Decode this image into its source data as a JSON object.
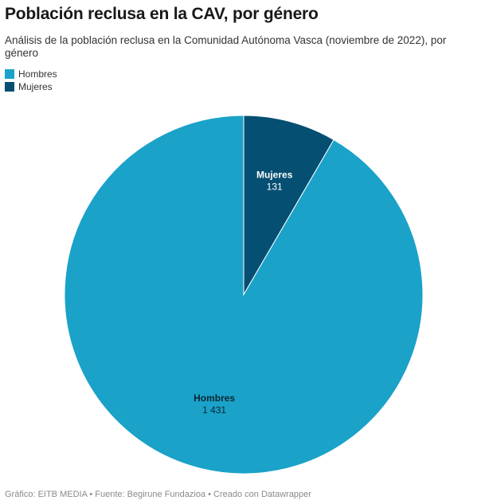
{
  "header": {
    "title": "Población reclusa en la CAV, por género",
    "subtitle": "Análisis de la población reclusa en la Comunidad Autónoma Vasca (noviembre de 2022), por género"
  },
  "legend": {
    "items": [
      {
        "label": "Hombres",
        "color": "#1aa2c9"
      },
      {
        "label": "Mujeres",
        "color": "#054f73"
      }
    ]
  },
  "chart_data": {
    "type": "pie",
    "title": "Población reclusa en la CAV, por género",
    "subtitle": "Análisis de la población reclusa en la Comunidad Autónoma Vasca (noviembre de 2022), por género",
    "legend_position": "top-left",
    "slices": [
      {
        "label": "Mujeres",
        "value": 131,
        "value_label": "131",
        "color": "#054f73"
      },
      {
        "label": "Hombres",
        "value": 1431,
        "value_label": "1 431",
        "color": "#1aa2c9"
      }
    ]
  },
  "footer": {
    "text": "Gráfico: EITB MEDIA • Fuente: Begirune Fundazioa • Creado con Datawrapper"
  }
}
